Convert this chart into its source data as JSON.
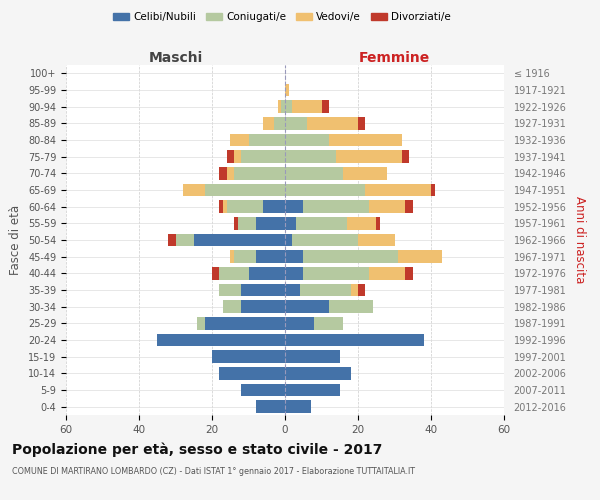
{
  "age_groups": [
    "0-4",
    "5-9",
    "10-14",
    "15-19",
    "20-24",
    "25-29",
    "30-34",
    "35-39",
    "40-44",
    "45-49",
    "50-54",
    "55-59",
    "60-64",
    "65-69",
    "70-74",
    "75-79",
    "80-84",
    "85-89",
    "90-94",
    "95-99",
    "100+"
  ],
  "birth_years": [
    "2012-2016",
    "2007-2011",
    "2002-2006",
    "1997-2001",
    "1992-1996",
    "1987-1991",
    "1982-1986",
    "1977-1981",
    "1972-1976",
    "1967-1971",
    "1962-1966",
    "1957-1961",
    "1952-1956",
    "1947-1951",
    "1942-1946",
    "1937-1941",
    "1932-1936",
    "1927-1931",
    "1922-1926",
    "1917-1921",
    "≤ 1916"
  ],
  "maschi": {
    "celibi": [
      8,
      12,
      18,
      20,
      35,
      22,
      12,
      12,
      10,
      8,
      25,
      8,
      6,
      0,
      0,
      0,
      0,
      0,
      0,
      0,
      0
    ],
    "coniugati": [
      0,
      0,
      0,
      0,
      0,
      2,
      5,
      6,
      8,
      6,
      5,
      5,
      10,
      22,
      14,
      12,
      10,
      3,
      1,
      0,
      0
    ],
    "vedovi": [
      0,
      0,
      0,
      0,
      0,
      0,
      0,
      0,
      0,
      1,
      0,
      0,
      1,
      6,
      2,
      2,
      5,
      3,
      1,
      0,
      0
    ],
    "divorziati": [
      0,
      0,
      0,
      0,
      0,
      0,
      0,
      0,
      2,
      0,
      2,
      1,
      1,
      0,
      2,
      2,
      0,
      0,
      0,
      0,
      0
    ]
  },
  "femmine": {
    "nubili": [
      7,
      15,
      18,
      15,
      38,
      8,
      12,
      4,
      5,
      5,
      2,
      3,
      5,
      0,
      0,
      0,
      0,
      0,
      0,
      0,
      0
    ],
    "coniugate": [
      0,
      0,
      0,
      0,
      0,
      8,
      12,
      14,
      18,
      26,
      18,
      14,
      18,
      22,
      16,
      14,
      12,
      6,
      2,
      0,
      0
    ],
    "vedove": [
      0,
      0,
      0,
      0,
      0,
      0,
      0,
      2,
      10,
      12,
      10,
      8,
      10,
      18,
      12,
      18,
      20,
      14,
      8,
      1,
      0
    ],
    "divorziate": [
      0,
      0,
      0,
      0,
      0,
      0,
      0,
      2,
      2,
      0,
      0,
      1,
      2,
      1,
      0,
      2,
      0,
      2,
      2,
      0,
      0
    ]
  },
  "colors": {
    "celibi_nubili": "#4472a8",
    "coniugati": "#b5c9a0",
    "vedovi": "#f0c070",
    "divorziati": "#c0392b"
  },
  "title": "Popolazione per età, sesso e stato civile - 2017",
  "subtitle": "COMUNE DI MARTIRANO LOMBARDO (CZ) - Dati ISTAT 1° gennaio 2017 - Elaborazione TUTTAITALIA.IT",
  "xlabel_left": "Maschi",
  "xlabel_right": "Femmine",
  "ylabel_left": "Fasce di età",
  "ylabel_right": "Anni di nascita",
  "xlim": 60,
  "bg_color": "#f5f5f5",
  "plot_bg_color": "#ffffff"
}
